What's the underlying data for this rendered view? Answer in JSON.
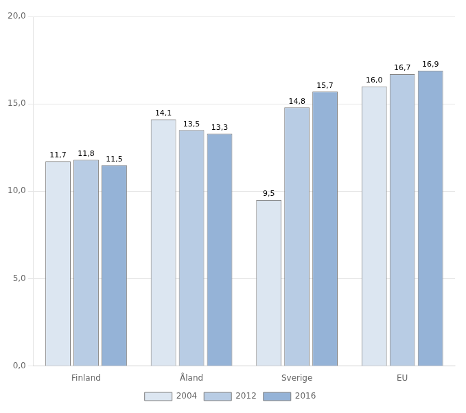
{
  "chart_data": {
    "type": "bar",
    "categories": [
      "Finland",
      "Åland",
      "Sverige",
      "EU"
    ],
    "series": [
      {
        "name": "2004",
        "color": "#dce6f1",
        "values": [
          11.7,
          14.1,
          9.5,
          16.0
        ],
        "value_labels": [
          "11,7",
          "14,1",
          "9,5",
          "16,0"
        ]
      },
      {
        "name": "2012",
        "color": "#b8cce4",
        "values": [
          11.8,
          13.5,
          14.8,
          16.7
        ],
        "value_labels": [
          "11,8",
          "13,5",
          "14,8",
          "16,7"
        ]
      },
      {
        "name": "2016",
        "color": "#95b3d7",
        "values": [
          11.5,
          13.3,
          15.7,
          16.9
        ],
        "value_labels": [
          "11,5",
          "13,3",
          "15,7",
          "16,9"
        ]
      }
    ],
    "ylim": [
      0,
      20
    ],
    "yticks": [
      {
        "value": 0,
        "label": "0,0"
      },
      {
        "value": 5,
        "label": "5,0"
      },
      {
        "value": 10,
        "label": "10,0"
      },
      {
        "value": 15,
        "label": "15,0"
      },
      {
        "value": 20,
        "label": "20,0"
      }
    ],
    "grid": true,
    "legend": "bottom",
    "data_labels": true
  }
}
